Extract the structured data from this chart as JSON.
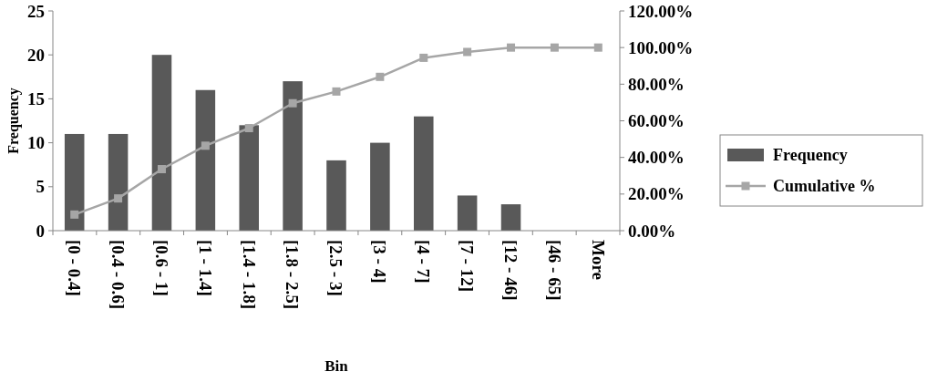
{
  "chart_data": {
    "type": "bar",
    "xlabel": "Bin",
    "ylabel": "Frequency",
    "categories": [
      "[0 - 0.4]",
      "[0.4 - 0.6]",
      "[0.6 - 1]",
      "[1 - 1.4]",
      "[1.4 - 1.8]",
      "[1.8 - 2.5]",
      "[2.5 - 3]",
      "[3 - 4]",
      "[4 - 7]",
      "[7 - 12]",
      "[12 - 46]",
      "[46 - 65]",
      "More"
    ],
    "series": [
      {
        "name": "Frequency",
        "color": "#595959",
        "values": [
          11,
          11,
          20,
          16,
          12,
          17,
          8,
          10,
          13,
          4,
          3,
          0,
          0
        ]
      },
      {
        "name": "Cumulative %",
        "type": "line",
        "axis": "y2",
        "color": "#a6a6a6",
        "marker": "square",
        "values": [
          8.8,
          17.6,
          33.6,
          46.4,
          56,
          69.6,
          76,
          84,
          94.4,
          97.6,
          100,
          100,
          100
        ]
      }
    ],
    "ylim": [
      0,
      25
    ],
    "yticks": [
      0,
      5,
      10,
      15,
      20,
      25
    ],
    "y2lim": [
      0,
      120
    ],
    "y2ticks": [
      {
        "value": 0,
        "label": "0.00%"
      },
      {
        "value": 20,
        "label": "20.00%"
      },
      {
        "value": 40,
        "label": "40.00%"
      },
      {
        "value": 60,
        "label": "60.00%"
      },
      {
        "value": 80,
        "label": "80.00%"
      },
      {
        "value": 100,
        "label": "100.00%"
      },
      {
        "value": 120,
        "label": "120.00%"
      }
    ],
    "grid": false,
    "legend": "right"
  }
}
